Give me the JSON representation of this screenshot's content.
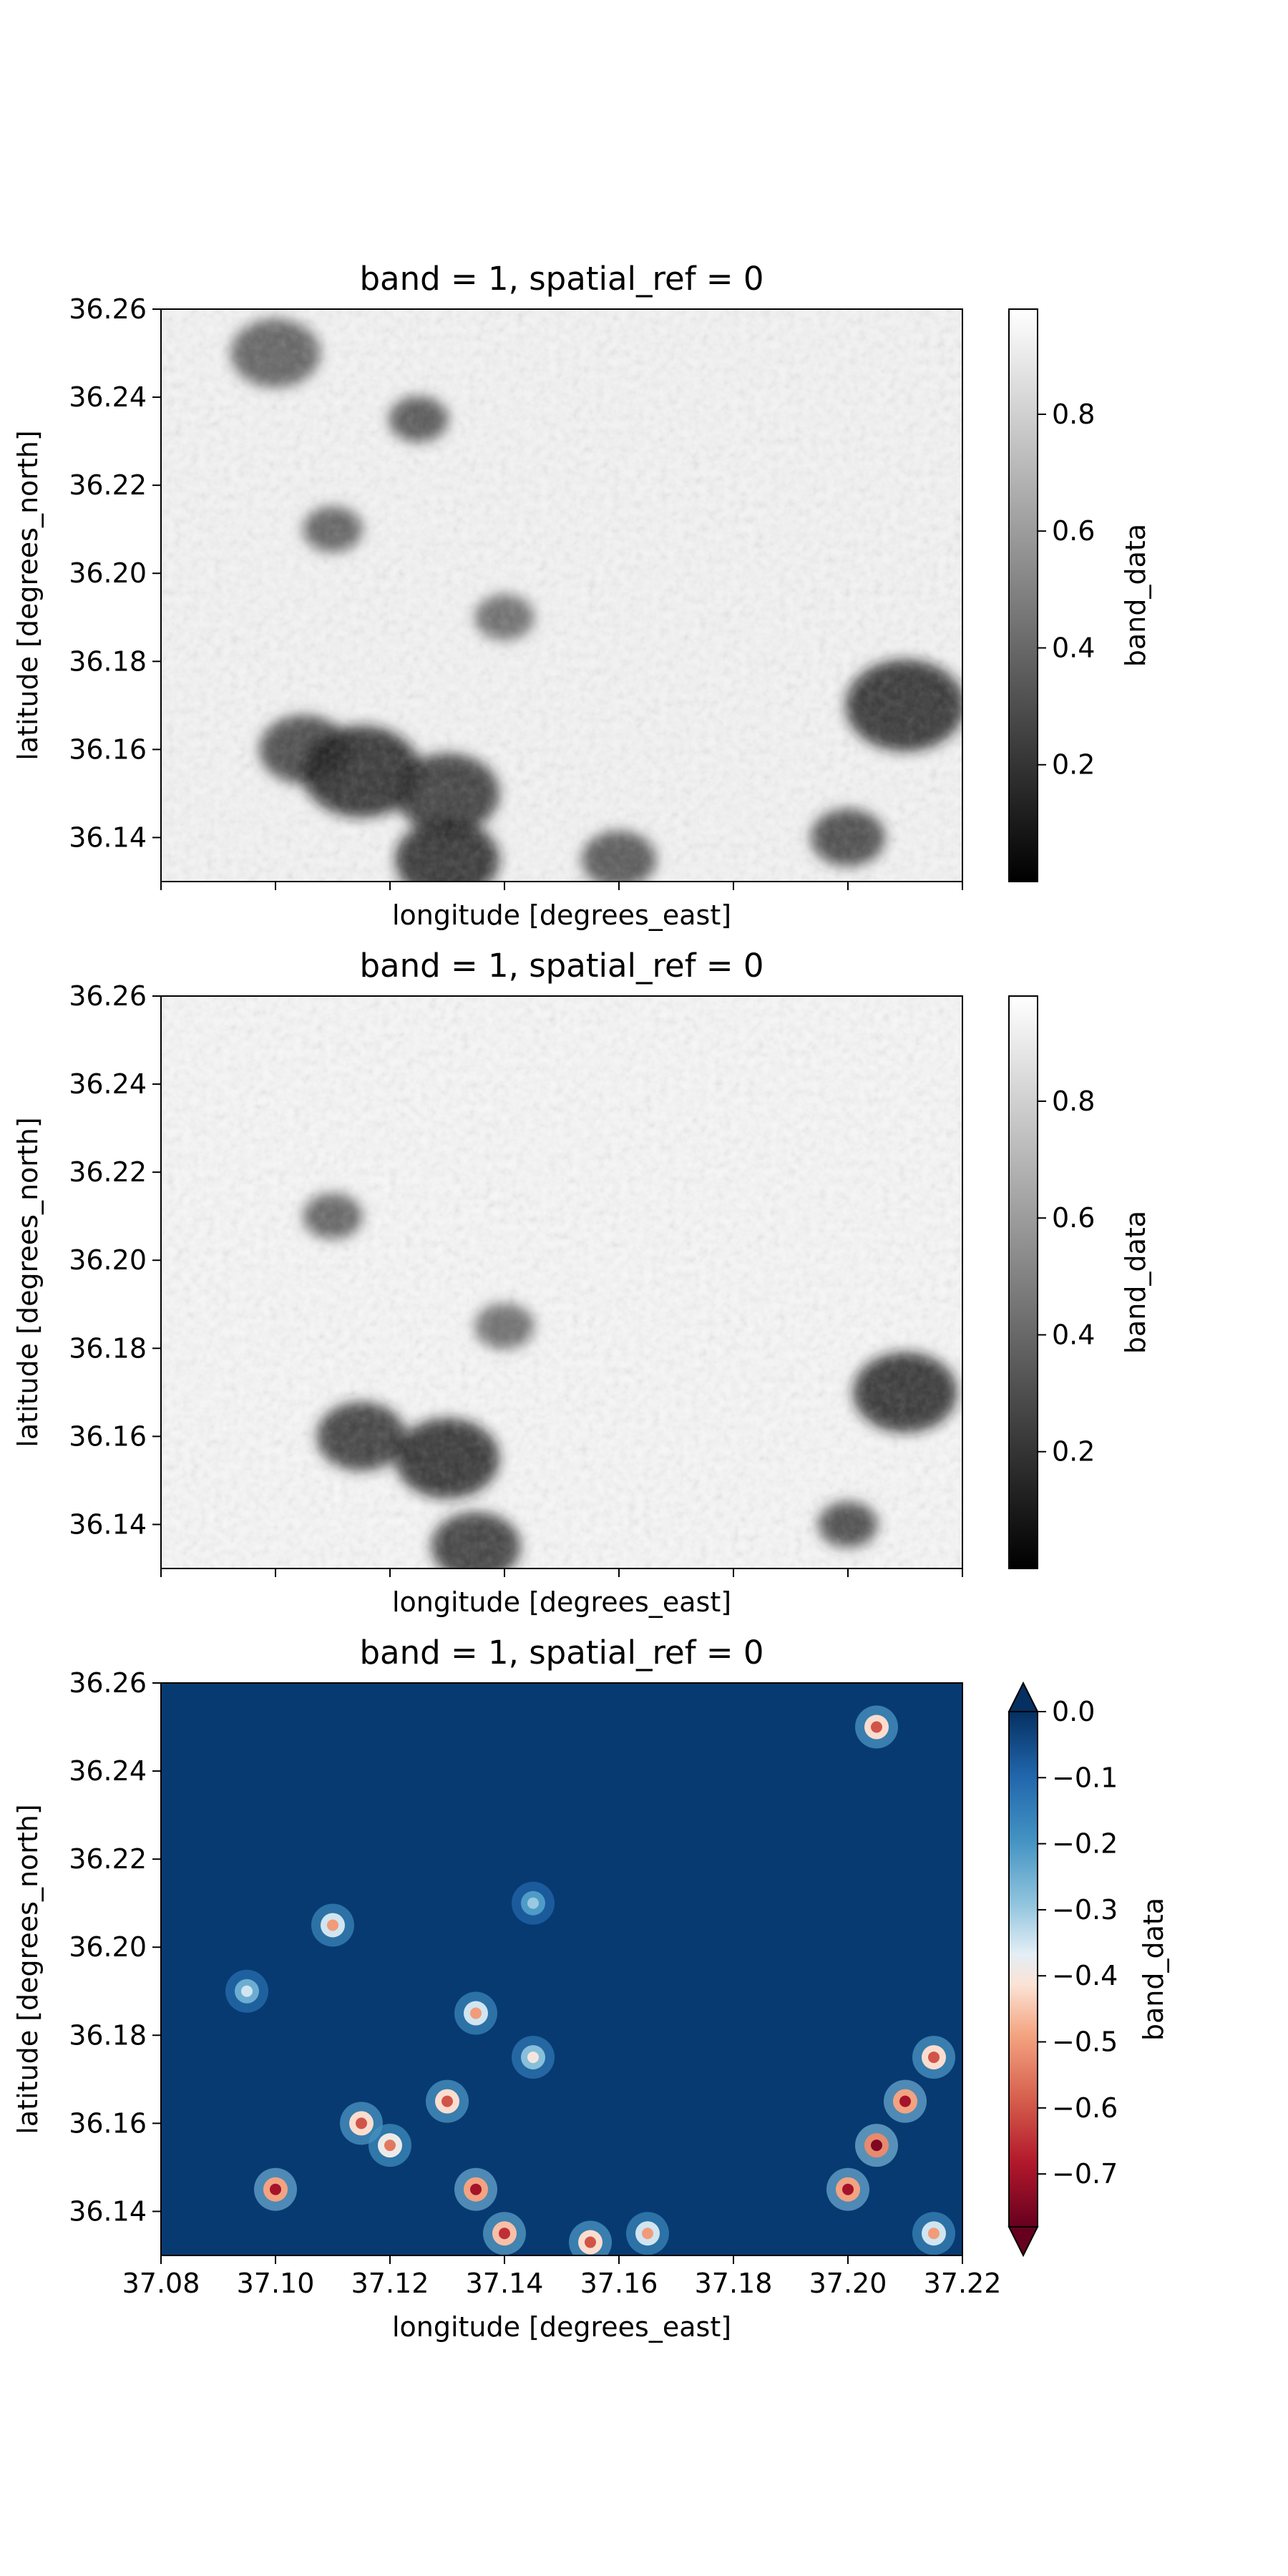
{
  "chart_data": [
    {
      "type": "heatmap",
      "title": "band = 1, spatial_ref = 0",
      "xlabel": "longitude [degrees_east]",
      "ylabel": "latitude [degrees_north]",
      "xlim": [
        37.08,
        37.22
      ],
      "ylim": [
        36.13,
        36.26
      ],
      "x_ticks": [
        37.08,
        37.1,
        37.12,
        37.14,
        37.16,
        37.18,
        37.2,
        37.22
      ],
      "x_tick_labels_shown": false,
      "y_ticks": [
        36.14,
        36.16,
        36.18,
        36.2,
        36.22,
        36.24,
        36.26
      ],
      "y_tick_labels": [
        "36.14",
        "36.16",
        "36.18",
        "36.20",
        "36.22",
        "36.24",
        "36.26"
      ],
      "colormap": "gray",
      "colorbar": {
        "label": "band_data",
        "range": [
          0.0,
          0.98
        ],
        "ticks": [
          0.2,
          0.4,
          0.6,
          0.8
        ],
        "tick_labels": [
          "0.2",
          "0.4",
          "0.6",
          "0.8"
        ],
        "extend": "neither"
      },
      "dark_regions": [
        {
          "lon": 37.105,
          "lat": 36.16,
          "radius": 0.006,
          "value": 0.2
        },
        {
          "lon": 37.115,
          "lat": 36.155,
          "radius": 0.008,
          "value": 0.1
        },
        {
          "lon": 37.13,
          "lat": 36.15,
          "radius": 0.007,
          "value": 0.15
        },
        {
          "lon": 37.13,
          "lat": 36.135,
          "radius": 0.007,
          "value": 0.1
        },
        {
          "lon": 37.16,
          "lat": 36.135,
          "radius": 0.005,
          "value": 0.25
        },
        {
          "lon": 37.21,
          "lat": 36.17,
          "radius": 0.008,
          "value": 0.1
        },
        {
          "lon": 37.2,
          "lat": 36.14,
          "radius": 0.005,
          "value": 0.2
        },
        {
          "lon": 37.125,
          "lat": 36.235,
          "radius": 0.004,
          "value": 0.25
        },
        {
          "lon": 37.1,
          "lat": 36.25,
          "radius": 0.006,
          "value": 0.3
        },
        {
          "lon": 37.11,
          "lat": 36.21,
          "radius": 0.004,
          "value": 0.3
        },
        {
          "lon": 37.14,
          "lat": 36.19,
          "radius": 0.004,
          "value": 0.35
        }
      ]
    },
    {
      "type": "heatmap",
      "title": "band = 1, spatial_ref = 0",
      "xlabel": "longitude [degrees_east]",
      "ylabel": "latitude [degrees_north]",
      "xlim": [
        37.08,
        37.22
      ],
      "ylim": [
        36.13,
        36.26
      ],
      "x_ticks": [
        37.08,
        37.1,
        37.12,
        37.14,
        37.16,
        37.18,
        37.2,
        37.22
      ],
      "x_tick_labels_shown": false,
      "y_ticks": [
        36.14,
        36.16,
        36.18,
        36.2,
        36.22,
        36.24,
        36.26
      ],
      "y_tick_labels": [
        "36.14",
        "36.16",
        "36.18",
        "36.20",
        "36.22",
        "36.24",
        "36.26"
      ],
      "colormap": "gray",
      "colorbar": {
        "label": "band_data",
        "range": [
          0.0,
          0.98
        ],
        "ticks": [
          0.2,
          0.4,
          0.6,
          0.8
        ],
        "tick_labels": [
          "0.2",
          "0.4",
          "0.6",
          "0.8"
        ],
        "extend": "neither"
      },
      "dark_regions": [
        {
          "lon": 37.115,
          "lat": 36.16,
          "radius": 0.006,
          "value": 0.15
        },
        {
          "lon": 37.13,
          "lat": 36.155,
          "radius": 0.007,
          "value": 0.1
        },
        {
          "lon": 37.135,
          "lat": 36.135,
          "radius": 0.006,
          "value": 0.15
        },
        {
          "lon": 37.21,
          "lat": 36.17,
          "radius": 0.007,
          "value": 0.1
        },
        {
          "lon": 37.2,
          "lat": 36.14,
          "radius": 0.004,
          "value": 0.2
        },
        {
          "lon": 37.11,
          "lat": 36.21,
          "radius": 0.004,
          "value": 0.3
        },
        {
          "lon": 37.14,
          "lat": 36.185,
          "radius": 0.004,
          "value": 0.35
        }
      ]
    },
    {
      "type": "heatmap",
      "title": "band = 1, spatial_ref = 0",
      "xlabel": "longitude [degrees_east]",
      "ylabel": "latitude [degrees_north]",
      "xlim": [
        37.08,
        37.22
      ],
      "ylim": [
        36.13,
        36.26
      ],
      "x_ticks": [
        37.08,
        37.1,
        37.12,
        37.14,
        37.16,
        37.18,
        37.2,
        37.22
      ],
      "x_tick_labels": [
        "37.08",
        "37.10",
        "37.12",
        "37.14",
        "37.16",
        "37.18",
        "37.20",
        "37.22"
      ],
      "x_tick_labels_shown": true,
      "y_ticks": [
        36.14,
        36.16,
        36.18,
        36.2,
        36.22,
        36.24,
        36.26
      ],
      "y_tick_labels": [
        "36.14",
        "36.16",
        "36.18",
        "36.20",
        "36.22",
        "36.24",
        "36.26"
      ],
      "colormap": "RdBu",
      "colorbar": {
        "label": "band_data",
        "range": [
          -0.78,
          0.0
        ],
        "ticks": [
          0.0,
          -0.1,
          -0.2,
          -0.3,
          -0.4,
          -0.5,
          -0.6,
          -0.7
        ],
        "tick_labels": [
          "0.0",
          "−0.1",
          "−0.2",
          "−0.3",
          "−0.4",
          "−0.5",
          "−0.6",
          "−0.7"
        ],
        "extend": "both"
      },
      "background_value": 0.0,
      "hotspots": [
        {
          "lon": 37.1,
          "lat": 36.145,
          "value": -0.7
        },
        {
          "lon": 37.115,
          "lat": 36.16,
          "value": -0.6
        },
        {
          "lon": 37.12,
          "lat": 36.155,
          "value": -0.55
        },
        {
          "lon": 37.13,
          "lat": 36.165,
          "value": -0.6
        },
        {
          "lon": 37.135,
          "lat": 36.145,
          "value": -0.7
        },
        {
          "lon": 37.14,
          "lat": 36.135,
          "value": -0.65
        },
        {
          "lon": 37.155,
          "lat": 36.133,
          "value": -0.6
        },
        {
          "lon": 37.165,
          "lat": 36.135,
          "value": -0.5
        },
        {
          "lon": 37.2,
          "lat": 36.145,
          "value": -0.7
        },
        {
          "lon": 37.21,
          "lat": 36.165,
          "value": -0.7
        },
        {
          "lon": 37.215,
          "lat": 36.175,
          "value": -0.6
        },
        {
          "lon": 37.205,
          "lat": 36.155,
          "value": -0.75
        },
        {
          "lon": 37.215,
          "lat": 36.135,
          "value": -0.5
        },
        {
          "lon": 37.205,
          "lat": 36.25,
          "value": -0.6
        },
        {
          "lon": 37.11,
          "lat": 36.205,
          "value": -0.5
        },
        {
          "lon": 37.145,
          "lat": 36.175,
          "value": -0.4
        },
        {
          "lon": 37.135,
          "lat": 36.185,
          "value": -0.5
        },
        {
          "lon": 37.095,
          "lat": 36.19,
          "value": -0.35
        },
        {
          "lon": 37.145,
          "lat": 36.21,
          "value": -0.3
        }
      ]
    }
  ]
}
